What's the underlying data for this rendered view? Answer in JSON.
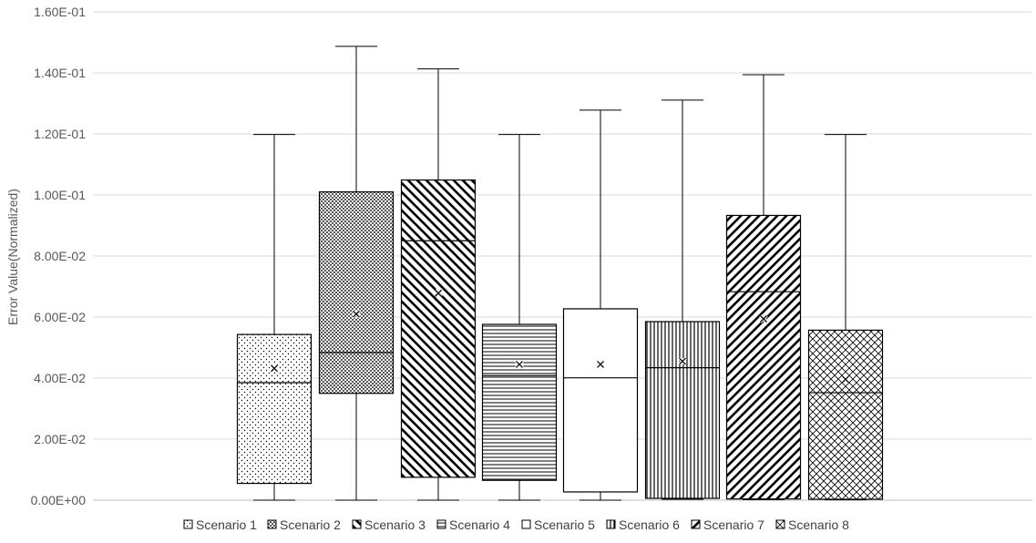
{
  "chart_data": {
    "type": "box",
    "title": "",
    "xlabel": "",
    "ylabel": "Error Value(Normalized)",
    "ylim": [
      0,
      0.16
    ],
    "y_ticks": [
      "0.00E+00",
      "2.00E-02",
      "4.00E-02",
      "6.00E-02",
      "8.00E-02",
      "1.00E-01",
      "1.20E-01",
      "1.40E-01",
      "1.60E-01"
    ],
    "grid": true,
    "legend_position": "bottom",
    "series": [
      {
        "name": "Scenario 1",
        "pattern": "dots",
        "min": 0.0,
        "q1": 0.0055,
        "median": 0.0385,
        "q3": 0.0543,
        "max": 0.1198,
        "mean": 0.0432
      },
      {
        "name": "Scenario 2",
        "pattern": "grid",
        "min": 0.0,
        "q1": 0.035,
        "median": 0.0484,
        "q3": 0.101,
        "max": 0.1487,
        "mean": 0.061
      },
      {
        "name": "Scenario 3",
        "pattern": "diag-down",
        "min": 0.0,
        "q1": 0.0075,
        "median": 0.085,
        "q3": 0.1049,
        "max": 0.1413,
        "mean": 0.0678
      },
      {
        "name": "Scenario 4",
        "pattern": "horizontal",
        "min": 0.0,
        "q1": 0.0065,
        "median": 0.0408,
        "q3": 0.0576,
        "max": 0.1198,
        "mean": 0.0445
      },
      {
        "name": "Scenario 5",
        "pattern": "none",
        "min": 0.0,
        "q1": 0.0027,
        "median": 0.0401,
        "q3": 0.0627,
        "max": 0.1278,
        "mean": 0.0445
      },
      {
        "name": "Scenario 6",
        "pattern": "vertical",
        "min": 0.0003,
        "q1": 0.0006,
        "median": 0.0434,
        "q3": 0.0585,
        "max": 0.1311,
        "mean": 0.0455
      },
      {
        "name": "Scenario 7",
        "pattern": "diag-up",
        "min": 0.0002,
        "q1": 0.0004,
        "median": 0.0683,
        "q3": 0.0933,
        "max": 0.1394,
        "mean": 0.0594
      },
      {
        "name": "Scenario 8",
        "pattern": "cross",
        "min": 0.0001,
        "q1": 0.0003,
        "median": 0.0352,
        "q3": 0.0557,
        "max": 0.1198,
        "mean": 0.0396
      }
    ]
  },
  "colors": {
    "box_stroke": "#000000",
    "grid": "#d9d9d9",
    "axis_text": "#595959"
  }
}
